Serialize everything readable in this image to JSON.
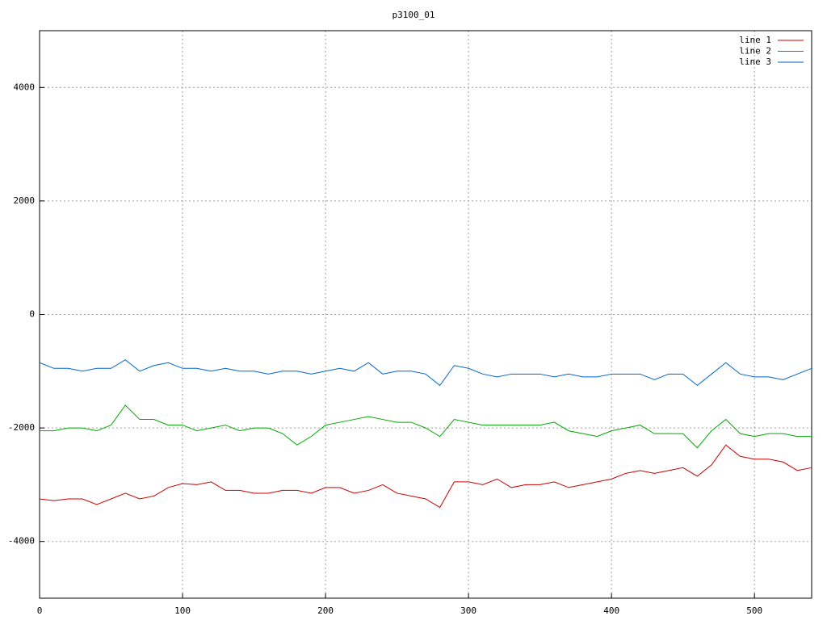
{
  "chart_data": {
    "type": "line",
    "title": "p3100_01",
    "x": [
      0,
      10,
      20,
      30,
      40,
      50,
      60,
      70,
      80,
      90,
      100,
      110,
      120,
      130,
      140,
      150,
      160,
      170,
      180,
      190,
      200,
      210,
      220,
      230,
      240,
      250,
      260,
      270,
      280,
      290,
      300,
      310,
      320,
      330,
      340,
      350,
      360,
      370,
      380,
      390,
      400,
      410,
      420,
      430,
      440,
      450,
      460,
      470,
      480,
      490,
      500,
      510,
      520,
      530,
      540
    ],
    "series": [
      {
        "name": "line 1",
        "color": "#cc0000",
        "values": [
          -3250,
          -3280,
          -3250,
          -3250,
          -3350,
          -3250,
          -3150,
          -3250,
          -3200,
          -3050,
          -2980,
          -3000,
          -2950,
          -3100,
          -3100,
          -3150,
          -3150,
          -3100,
          -3100,
          -3150,
          -3050,
          -3050,
          -3150,
          -3100,
          -3000,
          -3150,
          -3200,
          -3250,
          -3400,
          -2950,
          -2950,
          -3000,
          -2900,
          -3050,
          -3000,
          -3000,
          -2950,
          -3050,
          -3000,
          -2950,
          -2900,
          -2800,
          -2750,
          -2800,
          -2750,
          -2700,
          -2850,
          -2650,
          -2300,
          -2500,
          -2550,
          -2550,
          -2600,
          -2750,
          -2700
        ]
      },
      {
        "name": "line 2",
        "color": "#00aa00",
        "values": [
          -2050,
          -2050,
          -2000,
          -2000,
          -2050,
          -1950,
          -1600,
          -1850,
          -1850,
          -1950,
          -1950,
          -2050,
          -2000,
          -1950,
          -2050,
          -2000,
          -2000,
          -2100,
          -2300,
          -2150,
          -1950,
          -1900,
          -1850,
          -1800,
          -1850,
          -1900,
          -1900,
          -2000,
          -2150,
          -1850,
          -1900,
          -1950,
          -1950,
          -1950,
          -1950,
          -1950,
          -1900,
          -2050,
          -2100,
          -2150,
          -2050,
          -2000,
          -1950,
          -2100,
          -2100,
          -2100,
          -2350,
          -2050,
          -1850,
          -2100,
          -2150,
          -2100,
          -2100,
          -2150,
          -2150
        ]
      },
      {
        "name": "line 3",
        "color": "#0066cc",
        "values": [
          -850,
          -950,
          -950,
          -1000,
          -950,
          -950,
          -800,
          -1000,
          -900,
          -850,
          -950,
          -950,
          -1000,
          -950,
          -1000,
          -1000,
          -1050,
          -1000,
          -1000,
          -1050,
          -1000,
          -950,
          -1000,
          -850,
          -1050,
          -1000,
          -1000,
          -1050,
          -1250,
          -900,
          -950,
          -1050,
          -1100,
          -1050,
          -1050,
          -1050,
          -1100,
          -1050,
          -1100,
          -1100,
          -1050,
          -1050,
          -1050,
          -1150,
          -1050,
          -1050,
          -1250,
          -1050,
          -850,
          -1050,
          -1100,
          -1100,
          -1150,
          -1050,
          -950
        ]
      }
    ],
    "xlim": [
      0,
      540
    ],
    "xticks": [
      0,
      100,
      200,
      300,
      400,
      500
    ],
    "ylim": [
      -5000,
      5000
    ],
    "yticks": [
      -4000,
      -2000,
      0,
      2000,
      4000
    ],
    "grid": true,
    "legend": "top-right"
  }
}
